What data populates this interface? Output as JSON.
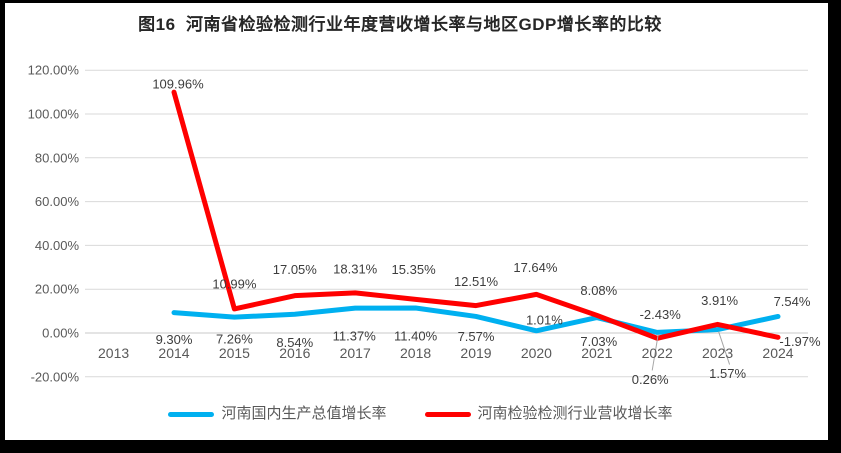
{
  "window": {
    "frame_color": "#000000",
    "background": "#ffffff"
  },
  "chart_data": {
    "type": "line",
    "title": "图16  河南省检验检测行业年度营收增长率与地区GDP增长率的比较",
    "xlabel": "",
    "ylabel": "",
    "categories": [
      "2013",
      "2014",
      "2015",
      "2016",
      "2017",
      "2018",
      "2019",
      "2020",
      "2021",
      "2022",
      "2023",
      "2024"
    ],
    "y_ticks": [
      "120.00%",
      "100.00%",
      "80.00%",
      "60.00%",
      "40.00%",
      "20.00%",
      "0.00%",
      "-20.00%"
    ],
    "y_tick_values": [
      120,
      100,
      80,
      60,
      40,
      20,
      0,
      -20
    ],
    "ylim": [
      -20,
      120
    ],
    "grid": true,
    "legend_position": "bottom",
    "series": [
      {
        "name": "河南国内生产总值增长率",
        "color": "#00B0F0",
        "values": [
          null,
          9.3,
          7.26,
          8.54,
          11.37,
          11.4,
          7.57,
          1.01,
          7.03,
          0.26,
          1.57,
          7.54
        ],
        "labels": [
          null,
          "9.30%",
          "7.26%",
          "8.54%",
          "11.37%",
          "11.40%",
          "7.57%",
          "1.01%",
          "7.03%",
          "0.26%",
          "1.57%",
          "7.54%"
        ]
      },
      {
        "name": "河南检验检测行业营收增长率",
        "color": "#FF0000",
        "values": [
          null,
          109.96,
          10.99,
          17.05,
          18.31,
          15.35,
          12.51,
          17.64,
          8.08,
          -2.43,
          3.91,
          -1.97
        ],
        "labels": [
          null,
          "109.96%",
          "10.99%",
          "17.05%",
          "18.31%",
          "15.35%",
          "12.51%",
          "17.64%",
          "8.08%",
          "-2.43%",
          "3.91%",
          "-1.97%"
        ]
      }
    ],
    "colors": {
      "gridline": "#D9D9D9",
      "zero_line": "#C9C9C9",
      "axis_text": "#595959",
      "data_label": "#3D3D3D",
      "leader_line": "#A6A6A6",
      "title_text": "#262626"
    }
  }
}
